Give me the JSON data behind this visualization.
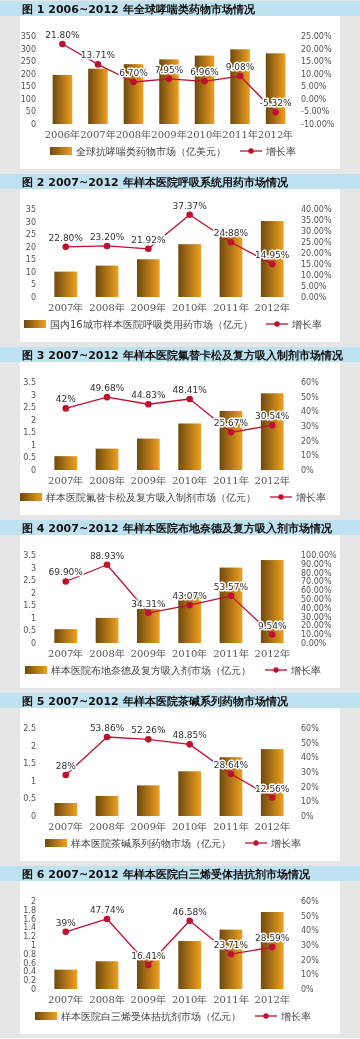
{
  "chart_data": [
    {
      "type": "bar",
      "title": "图 1 2006~2012 年全球哮喘类药物市场情况",
      "categories": [
        "2006年",
        "2007年",
        "2008年",
        "2009年",
        "2010年",
        "2011年",
        "2012年"
      ],
      "ylim": [
        0,
        350
      ],
      "yticks": [
        0,
        50,
        100,
        150,
        200,
        250,
        300,
        350
      ],
      "y2lim": [
        -10,
        25
      ],
      "y2ticks": [
        {
          "value": -10,
          "label": "-10.00%"
        },
        {
          "value": -5,
          "label": "-5.00%"
        },
        {
          "value": 0,
          "label": "0.00%"
        },
        {
          "value": 5,
          "label": "5.00%"
        },
        {
          "value": 10,
          "label": "10.00%"
        },
        {
          "value": 15,
          "label": "15.00%"
        },
        {
          "value": 20,
          "label": "20.00%"
        },
        {
          "value": 25,
          "label": "25.00%"
        }
      ],
      "legend": "bottom",
      "marker": "circle",
      "series": [
        {
          "name": "全球抗哮喘类药物市场（亿美元）",
          "color": "#f0a020",
          "values": [
            195,
            220,
            238,
            257,
            272,
            297,
            281
          ]
        },
        {
          "name": "增长率",
          "type": "line",
          "axis": "y2",
          "color": "#c01030",
          "values": [
            21.8,
            13.71,
            6.7,
            7.95,
            6.96,
            9.08,
            -5.32
          ],
          "value_labels": [
            "21.80%",
            "13.71%",
            "6.70%",
            "7.95%",
            "6.96%",
            "9.08%",
            "-5.32%"
          ]
        }
      ]
    },
    {
      "type": "bar",
      "title": "图 2 2007~2012 年样本医院呼吸系统用药市场情况",
      "categories": [
        "2007年",
        "2008年",
        "2009年",
        "2010年",
        "2011年",
        "2012年"
      ],
      "ylim": [
        0,
        35
      ],
      "yticks": [
        0,
        5,
        10,
        15,
        20,
        25,
        30,
        35
      ],
      "y2lim": [
        0,
        40
      ],
      "y2ticks": [
        {
          "value": 0,
          "label": "0.00%"
        },
        {
          "value": 5,
          "label": "5.00%"
        },
        {
          "value": 10,
          "label": "10.00%"
        },
        {
          "value": 15,
          "label": "15.00%"
        },
        {
          "value": 20,
          "label": "20.00%"
        },
        {
          "value": 25,
          "label": "25.00%"
        },
        {
          "value": 30,
          "label": "30.00%"
        },
        {
          "value": 35,
          "label": "35.00%"
        },
        {
          "value": 40,
          "label": "40.00%"
        }
      ],
      "legend": "bottom",
      "marker": "circle",
      "series": [
        {
          "name": "国内16城市样本医院呼吸类用药市场（亿元）",
          "color": "#f0a020",
          "values": [
            10.1,
            12.5,
            15,
            21,
            26,
            30.2
          ]
        },
        {
          "name": "增长率",
          "type": "line",
          "axis": "y2",
          "color": "#c01030",
          "values": [
            22.8,
            23.2,
            21.92,
            37.37,
            24.88,
            14.95
          ],
          "value_labels": [
            "22.80%",
            "23.20%",
            "21.92%",
            "37.37%",
            "24.88%",
            "14.95%"
          ]
        }
      ]
    },
    {
      "type": "bar",
      "title": "图 3 2007~2012 年样本医院氟替卡松及复方吸入制剂市场情况",
      "categories": [
        "2007年",
        "2008年",
        "2009年",
        "2010年",
        "2011年",
        "2012年"
      ],
      "ylim": [
        0,
        3.5
      ],
      "yticks": [
        0,
        0.5,
        1,
        1.5,
        2,
        2.5,
        3,
        3.5
      ],
      "y2lim": [
        0,
        60
      ],
      "y2ticks": [
        {
          "value": 0,
          "label": "0%"
        },
        {
          "value": 10,
          "label": "10%"
        },
        {
          "value": 20,
          "label": "20%"
        },
        {
          "value": 30,
          "label": "30%"
        },
        {
          "value": 40,
          "label": "40%"
        },
        {
          "value": 50,
          "label": "50%"
        },
        {
          "value": 60,
          "label": "60%"
        }
      ],
      "legend": "bottom",
      "marker": "circle",
      "series": [
        {
          "name": "样本医院氟替卡松及复方吸入制剂市场（亿元）",
          "color": "#f0a020",
          "values": [
            0.55,
            0.85,
            1.25,
            1.85,
            2.35,
            3.05
          ]
        },
        {
          "name": "增长率",
          "type": "line",
          "axis": "y2",
          "color": "#c01030",
          "values": [
            42,
            49.68,
            44.83,
            48.41,
            25.67,
            30.54
          ],
          "value_labels": [
            "42%",
            "49.68%",
            "44.83%",
            "48.41%",
            "25.67%",
            "30.54%"
          ]
        }
      ]
    },
    {
      "type": "bar",
      "title": "图 4 2007~2012 年样本医院布地奈德及复方吸入剂市场情况",
      "categories": [
        "2007年",
        "2008年",
        "2009年",
        "2010年",
        "2011年",
        "2012年"
      ],
      "ylim": [
        0,
        3.5
      ],
      "yticks": [
        0,
        0.5,
        1,
        1.5,
        2,
        2.5,
        3,
        3.5
      ],
      "y2lim": [
        0,
        100
      ],
      "y2ticks": [
        {
          "value": 0,
          "label": "0.00%"
        },
        {
          "value": 10,
          "label": "10.00%"
        },
        {
          "value": 20,
          "label": "20.00%"
        },
        {
          "value": 30,
          "label": "30.00%"
        },
        {
          "value": 40,
          "label": "40.00%"
        },
        {
          "value": 50,
          "label": "50.00%"
        },
        {
          "value": 60,
          "label": "60.00%"
        },
        {
          "value": 70,
          "label": "70.00%"
        },
        {
          "value": 80,
          "label": "80.00%"
        },
        {
          "value": 90,
          "label": "90.00%"
        },
        {
          "value": 100,
          "label": "100.00%"
        }
      ],
      "legend": "bottom",
      "marker": "circle",
      "series": [
        {
          "name": "样本医院布地奈德及复方吸入剂市场（亿元）",
          "color": "#f0a020",
          "values": [
            0.55,
            1.0,
            1.35,
            1.95,
            3.0,
            3.3
          ]
        },
        {
          "name": "增长率",
          "type": "line",
          "axis": "y2",
          "color": "#c01030",
          "values": [
            69.9,
            88.93,
            34.31,
            43.07,
            53.57,
            9.54
          ],
          "value_labels": [
            "69.90%",
            "88.93%",
            "34.31%",
            "43.07%",
            "53.57%",
            "9.54%"
          ]
        }
      ]
    },
    {
      "type": "bar",
      "title": "图 5 2007~2012 年样本医院茶碱系列药物市场情况",
      "categories": [
        "2007年",
        "2008年",
        "2009年",
        "2010年",
        "2011年",
        "2012年"
      ],
      "ylim": [
        0,
        2.5
      ],
      "yticks": [
        0,
        0.5,
        1,
        1.5,
        2,
        2.5
      ],
      "y2lim": [
        0,
        60
      ],
      "y2ticks": [
        {
          "value": 0,
          "label": "0%"
        },
        {
          "value": 10,
          "label": "10%"
        },
        {
          "value": 20,
          "label": "20%"
        },
        {
          "value": 30,
          "label": "30%"
        },
        {
          "value": 40,
          "label": "40%"
        },
        {
          "value": 50,
          "label": "50%"
        },
        {
          "value": 60,
          "label": "60%"
        }
      ],
      "legend": "bottom",
      "marker": "circle",
      "series": [
        {
          "name": "样本医院茶碱系列药物市场（亿元）",
          "color": "#f0a020",
          "values": [
            0.37,
            0.57,
            0.87,
            1.27,
            1.67,
            1.9
          ]
        },
        {
          "name": "增长率",
          "type": "line",
          "axis": "y2",
          "color": "#c01030",
          "values": [
            28,
            53.86,
            52.26,
            48.85,
            28.64,
            12.56
          ],
          "value_labels": [
            "28%",
            "53.86%",
            "52.26%",
            "48.85%",
            "28.64%",
            "12.56%"
          ]
        }
      ]
    },
    {
      "type": "bar",
      "title": "图 6 2007~2012 年样本医院白三烯受体拮抗剂市场情况",
      "categories": [
        "2007年",
        "2008年",
        "2009年",
        "2010年",
        "2011年",
        "2012年"
      ],
      "ylim": [
        0,
        2
      ],
      "yticks": [
        0,
        0.2,
        0.4,
        0.6,
        0.8,
        1,
        1.2,
        1.4,
        1.6,
        1.8,
        2
      ],
      "y2lim": [
        0,
        60
      ],
      "y2ticks": [
        {
          "value": 0,
          "label": "0%"
        },
        {
          "value": 10,
          "label": "10%"
        },
        {
          "value": 20,
          "label": "20%"
        },
        {
          "value": 30,
          "label": "30%"
        },
        {
          "value": 40,
          "label": "40%"
        },
        {
          "value": 50,
          "label": "50%"
        },
        {
          "value": 60,
          "label": "60%"
        }
      ],
      "legend": "bottom",
      "marker": "circle",
      "series": [
        {
          "name": "样本医院白三烯受体拮抗剂市场（亿元）",
          "color": "#f0a020",
          "values": [
            0.44,
            0.63,
            0.74,
            1.09,
            1.35,
            1.75
          ]
        },
        {
          "name": "增长率",
          "type": "line",
          "axis": "y2",
          "color": "#c01030",
          "values": [
            39,
            47.74,
            16.41,
            46.58,
            23.71,
            28.59
          ],
          "value_labels": [
            "39%",
            "47.74%",
            "16.41%",
            "46.58%",
            "23.71%",
            "28.59%"
          ]
        }
      ]
    }
  ]
}
